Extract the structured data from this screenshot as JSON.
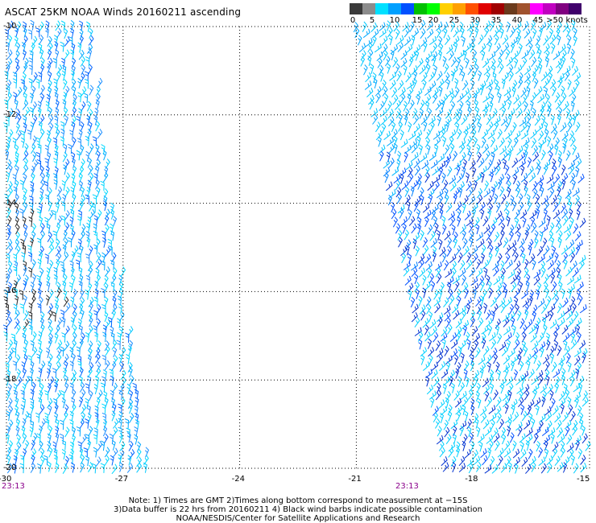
{
  "title": "ASCAT 25KM NOAA Winds 20160211 ascending",
  "legend": {
    "colors": [
      "#3a3a3a",
      "#8c8c8c",
      "#00e0ff",
      "#00a0ff",
      "#0050ff",
      "#00c000",
      "#00ff00",
      "#ffd000",
      "#ffa000",
      "#ff5000",
      "#e00000",
      "#a00000",
      "#6b3a1c",
      "#a0522d",
      "#ff00ff",
      "#c000c0",
      "#800080",
      "#40006b"
    ],
    "labels": [
      "0",
      "5",
      "10",
      "15",
      "20",
      "25",
      "30",
      "35",
      "40",
      "45",
      ">50 knots"
    ],
    "unit": "knots"
  },
  "axes": {
    "y_ticks": [
      "-10",
      "-12",
      "-14",
      "-16",
      "-18",
      "-20"
    ],
    "x_ticks": [
      "-30",
      "-27",
      "-24",
      "-21",
      "-18",
      "-15"
    ],
    "lon_range": [
      -30,
      -15
    ],
    "lat_range": [
      -20,
      -10
    ]
  },
  "times": [
    "23:13",
    "23:13"
  ],
  "notes": [
    "Note: 1) Times are GMT 2)Times along bottom correspond to measurement at −15S",
    "3)Data buffer is 22 hrs from 20160211 4) Black wind barbs indicate possible contamination",
    "NOAA/NESDIS/Center for Satellite Applications and Research"
  ],
  "swaths": [
    {
      "name": "west-swath",
      "lon_left_top": -30,
      "lon_right_top": -27.8,
      "lon_left_bottom": -30,
      "lon_right_bottom": -26.3
    },
    {
      "name": "east-swath",
      "lon_left_top": -21.1,
      "lon_right_top": -15.3,
      "lon_left_bottom": -18.8,
      "lon_right_bottom": -15
    }
  ]
}
